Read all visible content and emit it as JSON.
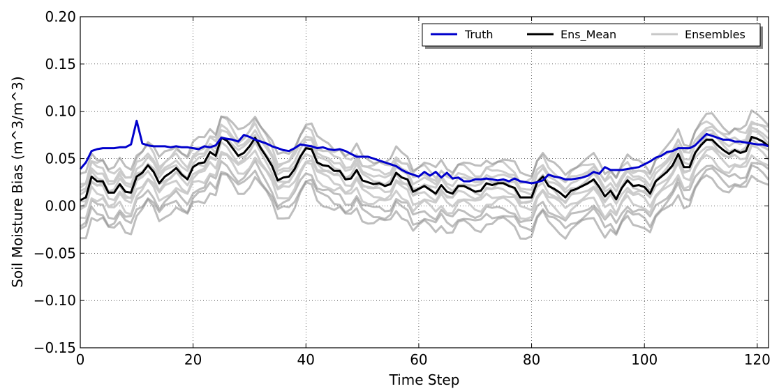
{
  "chart_data": {
    "type": "line",
    "xlabel": "Time Step",
    "ylabel": "Soil Moisture Bias (m^3/m^3)",
    "xlim": [
      0,
      122
    ],
    "ylim": [
      -0.15,
      0.2
    ],
    "xticks": [
      0,
      20,
      40,
      60,
      80,
      100,
      120
    ],
    "yticks": [
      -0.15,
      -0.1,
      -0.05,
      0.0,
      0.05,
      0.1,
      0.15,
      0.2
    ],
    "xtick_labels": [
      "0",
      "20",
      "40",
      "60",
      "80",
      "100",
      "120"
    ],
    "ytick_labels": [
      "−0.15",
      "−0.10",
      "−0.05",
      "0.00",
      "0.05",
      "0.10",
      "0.15",
      "0.20"
    ],
    "grid": true,
    "legend_position": "top-right",
    "legend": [
      "Truth",
      "Ens_Mean",
      "Ensembles"
    ],
    "colors": {
      "truth": "#0000cc",
      "ens_mean": "#000000",
      "ensembles": "#c8c8c8",
      "ensembles_dark": "#888888"
    },
    "series": [
      {
        "name": "Truth",
        "x": [
          0,
          1,
          2,
          3,
          4,
          5,
          6,
          7,
          8,
          9,
          10,
          11,
          12,
          13,
          14,
          15,
          16,
          17,
          18,
          19,
          20,
          21,
          22,
          23,
          24,
          25,
          26,
          27,
          28,
          29,
          30,
          31,
          32,
          33,
          34,
          35,
          36,
          37,
          38,
          39,
          40,
          41,
          42,
          43,
          44,
          45,
          46,
          47,
          48,
          49,
          50,
          51,
          52,
          53,
          54,
          55,
          56,
          57,
          58,
          59,
          60,
          61,
          62,
          63,
          64,
          65,
          66,
          67,
          68,
          69,
          70,
          71,
          72,
          73,
          74,
          75,
          76,
          77,
          78,
          79,
          80,
          81,
          82,
          83,
          84,
          85,
          86,
          87,
          88,
          89,
          90,
          91,
          92,
          93,
          94,
          95,
          96,
          97,
          98,
          99,
          100,
          101,
          102,
          103,
          104,
          105,
          106,
          107,
          108,
          109,
          110,
          111,
          112,
          113,
          114,
          115,
          116,
          117,
          118,
          119,
          120,
          121,
          122
        ],
        "y": [
          0.039,
          0.046,
          0.058,
          0.06,
          0.061,
          0.061,
          0.061,
          0.062,
          0.062,
          0.065,
          0.09,
          0.066,
          0.064,
          0.063,
          0.063,
          0.063,
          0.062,
          0.063,
          0.062,
          0.062,
          0.061,
          0.06,
          0.063,
          0.062,
          0.064,
          0.072,
          0.071,
          0.07,
          0.068,
          0.075,
          0.073,
          0.07,
          0.068,
          0.066,
          0.063,
          0.061,
          0.059,
          0.058,
          0.061,
          0.065,
          0.064,
          0.063,
          0.061,
          0.062,
          0.06,
          0.059,
          0.06,
          0.058,
          0.055,
          0.052,
          0.052,
          0.052,
          0.05,
          0.048,
          0.046,
          0.044,
          0.042,
          0.038,
          0.035,
          0.033,
          0.031,
          0.036,
          0.032,
          0.036,
          0.03,
          0.035,
          0.029,
          0.03,
          0.026,
          0.026,
          0.028,
          0.028,
          0.029,
          0.028,
          0.027,
          0.028,
          0.026,
          0.029,
          0.026,
          0.025,
          0.024,
          0.025,
          0.027,
          0.033,
          0.031,
          0.03,
          0.028,
          0.028,
          0.029,
          0.03,
          0.032,
          0.036,
          0.034,
          0.041,
          0.038,
          0.038,
          0.038,
          0.039,
          0.04,
          0.041,
          0.044,
          0.047,
          0.051,
          0.053,
          0.057,
          0.058,
          0.061,
          0.061,
          0.061,
          0.064,
          0.07,
          0.076,
          0.074,
          0.072,
          0.07,
          0.07,
          0.068,
          0.068,
          0.067,
          0.066,
          0.065,
          0.065,
          0.063
        ]
      },
      {
        "name": "Ens_Mean",
        "x": [
          0,
          1,
          2,
          3,
          4,
          5,
          6,
          7,
          8,
          9,
          10,
          11,
          12,
          13,
          14,
          15,
          16,
          17,
          18,
          19,
          20,
          21,
          22,
          23,
          24,
          25,
          26,
          27,
          28,
          29,
          30,
          31,
          32,
          33,
          34,
          35,
          36,
          37,
          38,
          39,
          40,
          41,
          42,
          43,
          44,
          45,
          46,
          47,
          48,
          49,
          50,
          51,
          52,
          53,
          54,
          55,
          56,
          57,
          58,
          59,
          60,
          61,
          62,
          63,
          64,
          65,
          66,
          67,
          68,
          69,
          70,
          71,
          72,
          73,
          74,
          75,
          76,
          77,
          78,
          79,
          80,
          81,
          82,
          83,
          84,
          85,
          86,
          87,
          88,
          89,
          90,
          91,
          92,
          93,
          94,
          95,
          96,
          97,
          98,
          99,
          100,
          101,
          102,
          103,
          104,
          105,
          106,
          107,
          108,
          109,
          110,
          111,
          112,
          113,
          114,
          115,
          116,
          117,
          118,
          119,
          120,
          121,
          122
        ],
        "y": [
          0.006,
          0.009,
          0.031,
          0.026,
          0.026,
          0.014,
          0.014,
          0.023,
          0.015,
          0.014,
          0.031,
          0.035,
          0.043,
          0.036,
          0.024,
          0.031,
          0.035,
          0.04,
          0.033,
          0.028,
          0.041,
          0.045,
          0.046,
          0.057,
          0.053,
          0.072,
          0.069,
          0.061,
          0.053,
          0.056,
          0.063,
          0.072,
          0.061,
          0.052,
          0.042,
          0.027,
          0.03,
          0.031,
          0.039,
          0.052,
          0.061,
          0.06,
          0.046,
          0.043,
          0.042,
          0.037,
          0.037,
          0.028,
          0.029,
          0.038,
          0.027,
          0.025,
          0.023,
          0.024,
          0.021,
          0.023,
          0.035,
          0.03,
          0.028,
          0.015,
          0.018,
          0.021,
          0.017,
          0.013,
          0.022,
          0.015,
          0.013,
          0.021,
          0.021,
          0.018,
          0.015,
          0.016,
          0.024,
          0.022,
          0.024,
          0.024,
          0.021,
          0.019,
          0.009,
          0.009,
          0.009,
          0.025,
          0.031,
          0.021,
          0.018,
          0.014,
          0.009,
          0.016,
          0.018,
          0.021,
          0.024,
          0.028,
          0.02,
          0.01,
          0.016,
          0.007,
          0.019,
          0.027,
          0.021,
          0.022,
          0.02,
          0.013,
          0.026,
          0.031,
          0.036,
          0.043,
          0.055,
          0.041,
          0.041,
          0.056,
          0.064,
          0.07,
          0.07,
          0.064,
          0.059,
          0.055,
          0.059,
          0.056,
          0.058,
          0.073,
          0.071,
          0.068,
          0.063
        ]
      }
    ],
    "ensemble_offsets": [
      -0.04,
      -0.033,
      -0.026,
      -0.019,
      -0.012,
      -0.006,
      -0.002,
      0.004,
      0.009,
      0.014,
      0.019,
      0.025
    ],
    "ensemble_wiggle": [
      -0.004,
      0.003,
      -0.002,
      0.004,
      -0.003,
      0.002,
      -0.004,
      0.003,
      0.001,
      -0.002,
      0.004,
      -0.003
    ]
  }
}
